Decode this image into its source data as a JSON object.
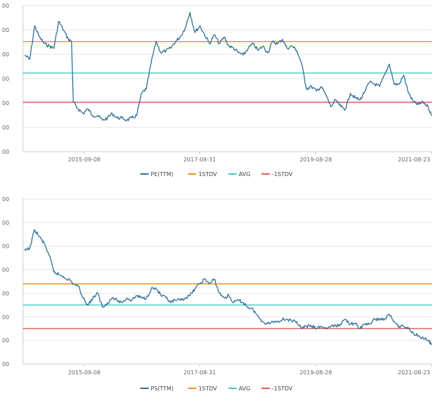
{
  "chart_data": [
    {
      "type": "line",
      "x_ticks": [
        "2015-09-08",
        "2017-08-31",
        "2019-08-28",
        "2021-08-23"
      ],
      "y_tick_labels": [
        "00",
        "00",
        "00",
        "00",
        "00",
        "00",
        "00"
      ],
      "legend": [
        "PE(TTM)",
        "1STDV",
        "AVG",
        "-1STDV"
      ],
      "legend_position": "bottom-center",
      "grid": "horizontal",
      "series": [
        {
          "name": "PE(TTM)",
          "color": "#2d6f96",
          "x": [
            "2014-09-01",
            "2014-10-01",
            "2014-11-01",
            "2014-12-01",
            "2015-01-01",
            "2015-02-01",
            "2015-03-01",
            "2015-04-01",
            "2015-05-01",
            "2015-06-01",
            "2015-06-20",
            "2015-07-01",
            "2015-08-01",
            "2015-09-01",
            "2015-10-01",
            "2015-11-01",
            "2015-12-01",
            "2016-01-01",
            "2016-02-01",
            "2016-03-01",
            "2016-04-01",
            "2016-05-01",
            "2016-06-01",
            "2016-07-01",
            "2016-08-01",
            "2016-09-01",
            "2016-10-01",
            "2016-11-01",
            "2016-12-01",
            "2017-01-01",
            "2017-02-01",
            "2017-03-01",
            "2017-04-01",
            "2017-05-01",
            "2017-06-01",
            "2017-07-01",
            "2017-08-01",
            "2017-09-01",
            "2017-10-01",
            "2017-11-01",
            "2017-12-01",
            "2018-01-01",
            "2018-02-01",
            "2018-03-01",
            "2018-04-01",
            "2018-05-01",
            "2018-06-01",
            "2018-07-01",
            "2018-08-01",
            "2018-09-01",
            "2018-10-01",
            "2018-11-01",
            "2018-12-01",
            "2019-01-01",
            "2019-02-01",
            "2019-03-01",
            "2019-04-01",
            "2019-05-01",
            "2019-06-01",
            "2019-07-01",
            "2019-08-01",
            "2019-09-01",
            "2019-10-01",
            "2019-11-01",
            "2019-12-01",
            "2020-01-01",
            "2020-02-01",
            "2020-03-01",
            "2020-04-01",
            "2020-05-01",
            "2020-06-01",
            "2020-07-01",
            "2020-08-01",
            "2020-09-01",
            "2020-10-01",
            "2020-11-01",
            "2020-12-01",
            "2021-01-01",
            "2021-02-01",
            "2021-03-01",
            "2021-04-01",
            "2021-05-01",
            "2021-06-01",
            "2021-07-01",
            "2021-08-01",
            "2021-08-23"
          ],
          "values": [
            4.3,
            4.1,
            5.6,
            5.1,
            4.8,
            4.7,
            4.6,
            5.8,
            5.4,
            5.0,
            4.9,
            2.2,
            1.9,
            1.7,
            1.9,
            1.6,
            1.6,
            1.4,
            1.5,
            1.7,
            1.5,
            1.5,
            1.4,
            1.5,
            1.6,
            2.6,
            2.8,
            4.0,
            4.9,
            4.4,
            4.5,
            4.6,
            4.9,
            5.1,
            5.5,
            6.2,
            5.3,
            5.6,
            5.2,
            4.8,
            5.2,
            4.8,
            5.1,
            4.7,
            4.6,
            4.4,
            4.3,
            4.6,
            4.8,
            4.5,
            4.7,
            4.4,
            4.9,
            4.8,
            5.0,
            4.6,
            4.7,
            4.5,
            3.9,
            2.8,
            2.9,
            2.7,
            2.9,
            2.5,
            2.0,
            2.3,
            2.0,
            1.9,
            2.6,
            2.4,
            2.3,
            2.7,
            3.1,
            3.0,
            2.9,
            3.4,
            3.9,
            3.0,
            3.0,
            3.4,
            2.6,
            2.2,
            2.1,
            2.2,
            2.0,
            1.6
          ]
        },
        {
          "name": "1STDV",
          "color": "#f0921f",
          "values": [
            4.9
          ]
        },
        {
          "name": "AVG",
          "color": "#45c6c4",
          "values": [
            3.5
          ]
        },
        {
          "name": "-1STDV",
          "color": "#e05858",
          "values": [
            2.2
          ]
        }
      ],
      "ylim": [
        0,
        6.5
      ]
    },
    {
      "type": "line",
      "x_ticks": [
        "2015-09-08",
        "2017-08-31",
        "2019-08-28",
        "2021-08-23"
      ],
      "y_tick_labels": [
        "00",
        "00",
        "00",
        "00",
        "00",
        "00",
        "00",
        "00"
      ],
      "legend": [
        "PS(TTM)",
        "1STDV",
        "AVG",
        "-1STDV"
      ],
      "legend_position": "bottom-center",
      "grid": "horizontal",
      "series": [
        {
          "name": "PS(TTM)",
          "color": "#2d6f96",
          "x": [
            "2014-09-01",
            "2014-10-01",
            "2014-11-01",
            "2014-12-01",
            "2015-01-01",
            "2015-02-01",
            "2015-03-01",
            "2015-04-01",
            "2015-05-01",
            "2015-06-01",
            "2015-07-01",
            "2015-08-01",
            "2015-09-01",
            "2015-10-01",
            "2015-11-01",
            "2015-12-01",
            "2016-01-01",
            "2016-02-01",
            "2016-03-01",
            "2016-04-01",
            "2016-05-01",
            "2016-06-01",
            "2016-07-01",
            "2016-08-01",
            "2016-09-01",
            "2016-10-01",
            "2016-11-01",
            "2016-12-01",
            "2017-01-01",
            "2017-02-01",
            "2017-03-01",
            "2017-04-01",
            "2017-05-01",
            "2017-06-01",
            "2017-07-01",
            "2017-08-01",
            "2017-09-01",
            "2017-10-01",
            "2017-11-01",
            "2017-12-01",
            "2018-01-01",
            "2018-02-01",
            "2018-03-01",
            "2018-04-01",
            "2018-05-01",
            "2018-06-01",
            "2018-07-01",
            "2018-08-01",
            "2018-09-01",
            "2018-10-01",
            "2018-11-01",
            "2018-12-01",
            "2019-01-01",
            "2019-02-01",
            "2019-03-01",
            "2019-04-01",
            "2019-05-01",
            "2019-06-01",
            "2019-07-01",
            "2019-08-01",
            "2019-09-01",
            "2019-10-01",
            "2019-11-01",
            "2019-12-01",
            "2020-01-01",
            "2020-02-01",
            "2020-03-01",
            "2020-04-01",
            "2020-05-01",
            "2020-06-01",
            "2020-07-01",
            "2020-08-01",
            "2020-09-01",
            "2020-10-01",
            "2020-11-01",
            "2020-12-01",
            "2021-01-01",
            "2021-02-01",
            "2021-03-01",
            "2021-04-01",
            "2021-05-01",
            "2021-06-01",
            "2021-07-01",
            "2021-08-01",
            "2021-08-23"
          ],
          "values": [
            4.8,
            4.9,
            5.7,
            5.4,
            5.1,
            4.6,
            3.9,
            3.8,
            3.7,
            3.6,
            3.4,
            3.3,
            2.8,
            2.5,
            2.8,
            3.0,
            2.4,
            2.6,
            2.8,
            2.7,
            2.6,
            2.8,
            2.7,
            2.9,
            2.8,
            2.8,
            3.2,
            3.2,
            2.9,
            2.8,
            2.6,
            2.7,
            2.7,
            2.8,
            2.9,
            3.2,
            3.4,
            3.6,
            3.4,
            3.6,
            3.0,
            2.8,
            2.9,
            2.6,
            2.7,
            2.6,
            2.4,
            2.3,
            2.0,
            1.8,
            1.7,
            1.8,
            1.8,
            1.9,
            1.9,
            1.8,
            1.8,
            1.5,
            1.6,
            1.6,
            1.5,
            1.6,
            1.5,
            1.6,
            1.6,
            1.7,
            1.9,
            1.7,
            1.7,
            1.5,
            1.7,
            1.7,
            1.9,
            1.9,
            1.9,
            2.1,
            1.8,
            1.6,
            1.6,
            1.5,
            1.3,
            1.2,
            1.1,
            1.0,
            0.8
          ]
        },
        {
          "name": "1STDV",
          "color": "#f0921f",
          "values": [
            3.4
          ]
        },
        {
          "name": "AVG",
          "color": "#45c6c4",
          "values": [
            2.5
          ]
        },
        {
          "name": "-1STDV",
          "color": "#e05858",
          "values": [
            1.5
          ]
        }
      ],
      "ylim": [
        0,
        7
      ]
    }
  ]
}
